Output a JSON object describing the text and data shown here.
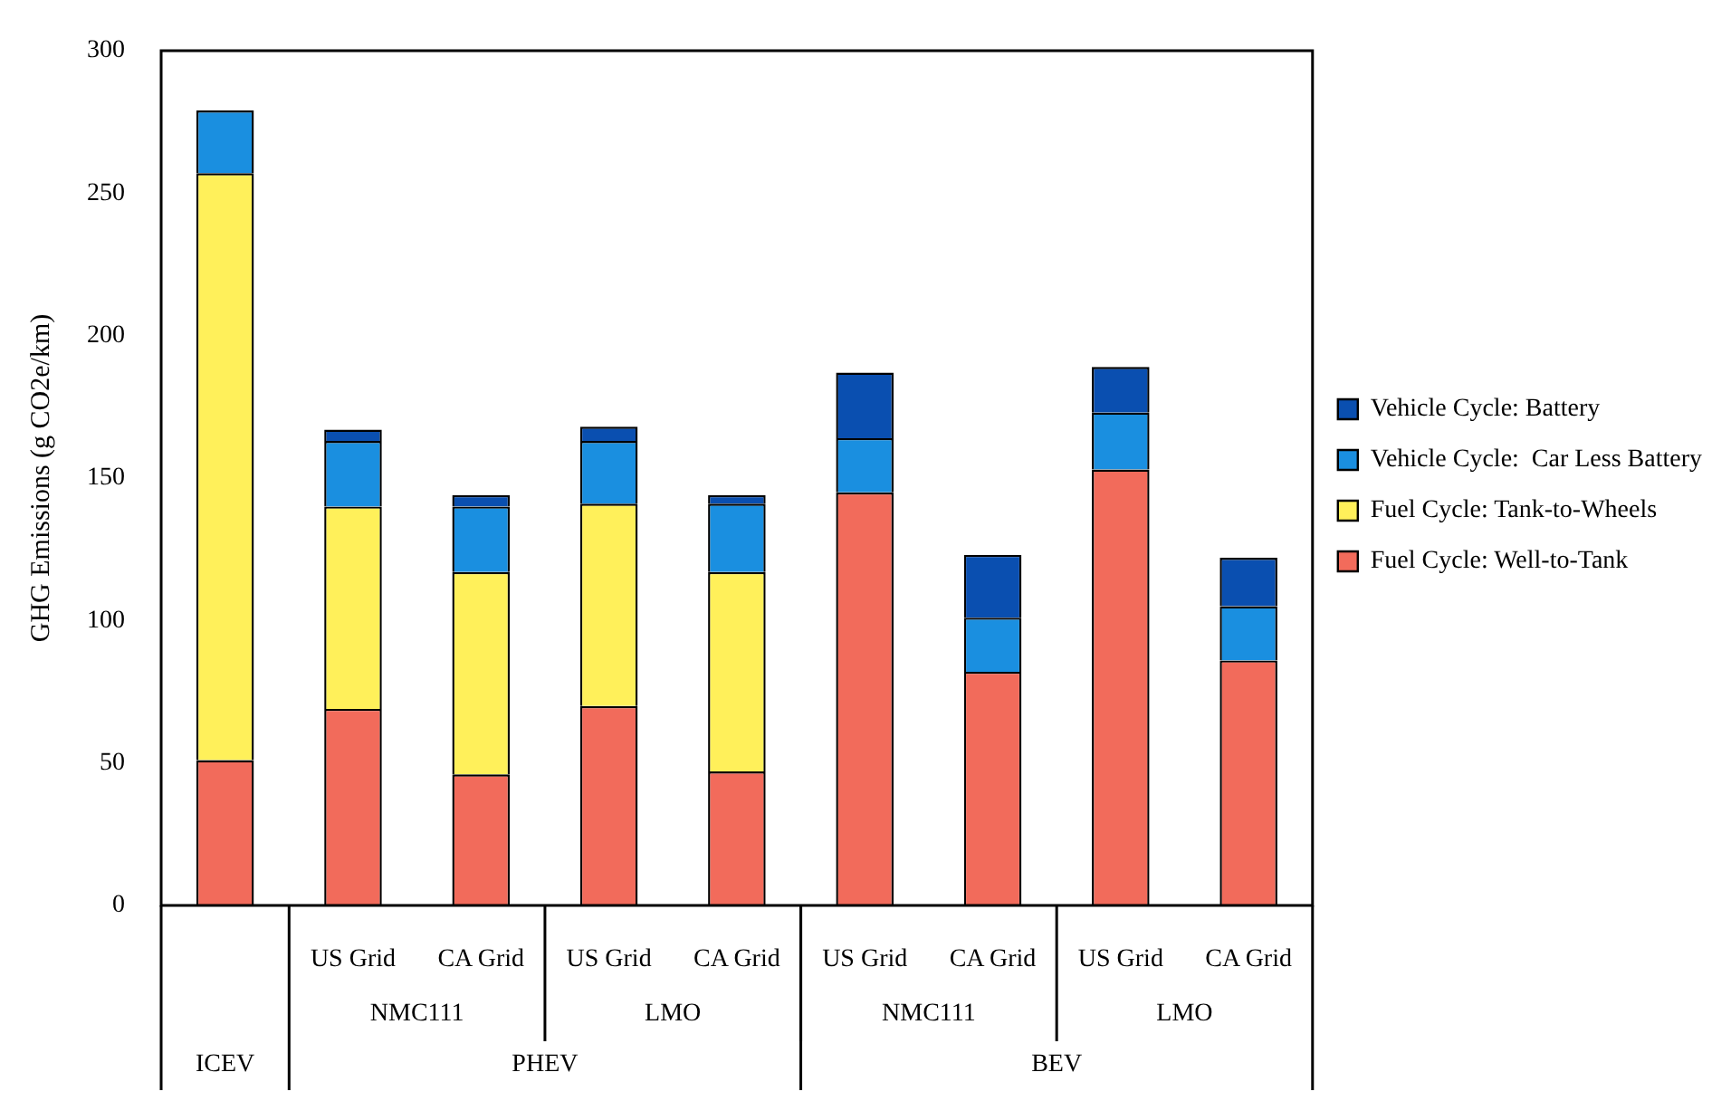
{
  "chart_data": {
    "type": "bar",
    "stacked": true,
    "ylabel": "GHG Emissions (g CO2e/km)",
    "categories": [
      null,
      "US Grid",
      "CA Grid",
      "US Grid",
      "CA Grid",
      "US Grid",
      "CA Grid",
      "US Grid",
      "CA Grid"
    ],
    "annotations": [
      "NMC111",
      "LMO",
      "NMC111",
      "LMO",
      "ICEV",
      "PHEV",
      "BEV"
    ],
    "series": [
      {
        "name": "Fuel Cycle: Well-to-Tank",
        "color": "#f26b5b",
        "values": [
          51,
          69,
          46,
          70,
          47,
          145,
          82,
          153,
          86
        ]
      },
      {
        "name": "Fuel Cycle: Tank-to-Wheels",
        "color": "#fff05a",
        "values": [
          206,
          71,
          71,
          71,
          70,
          0,
          0,
          0,
          0
        ]
      },
      {
        "name": "Vehicle Cycle:  Car Less Battery",
        "color": "#1a8fe0",
        "values": [
          22,
          23,
          23,
          22,
          24,
          19,
          19,
          20,
          19
        ]
      },
      {
        "name": "Vehicle Cycle: Battery",
        "color": "#0a4fb0",
        "values": [
          0,
          4,
          4,
          5,
          3,
          23,
          22,
          16,
          17
        ]
      }
    ],
    "ylim": [
      0,
      300
    ],
    "yticks": [
      0,
      50,
      100,
      150,
      200,
      250,
      300
    ],
    "grid": false,
    "legend": "right"
  }
}
